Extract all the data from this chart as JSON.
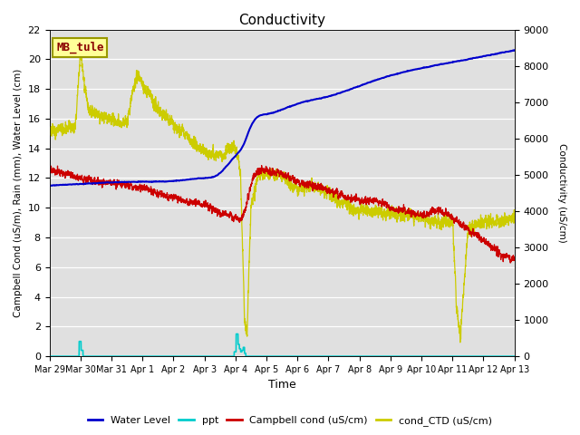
{
  "title": "Conductivity",
  "xlabel": "Time",
  "ylabel_left": "Campbell Cond (uS/m), Rain (mm), Water Level (cm)",
  "ylabel_right": "Conductivity (uS/cm)",
  "ylim_left": [
    0,
    22
  ],
  "ylim_right": [
    0,
    9000
  ],
  "xlim": [
    0,
    360
  ],
  "xtick_positions": [
    0,
    24,
    48,
    72,
    96,
    120,
    144,
    168,
    192,
    216,
    240,
    264,
    288,
    312,
    336,
    360
  ],
  "xtick_labels": [
    "Mar 29",
    "Mar 30",
    "Mar 31",
    "Apr 1",
    "Apr 2",
    "Apr 3",
    "Apr 4",
    "Apr 5",
    "Apr 6",
    "Apr 7",
    "Apr 8",
    "Apr 9",
    "Apr 10",
    "Apr 11",
    "Apr 12",
    "Apr 13"
  ],
  "annotation_text": "MB_tule",
  "annotation_color": "#8B0000",
  "annotation_box_color": "#FFFF99",
  "annotation_box_edge": "#999900",
  "bg_color": "#E0E0E0",
  "fig_color": "#FFFFFF",
  "water_level_color": "#0000CC",
  "ppt_color": "#00CCCC",
  "campbell_color": "#CC0000",
  "ctd_color": "#CCCC00",
  "legend_labels": [
    "Water Level",
    "ppt",
    "Campbell cond (uS/cm)",
    "cond_CTD (uS/cm)"
  ]
}
